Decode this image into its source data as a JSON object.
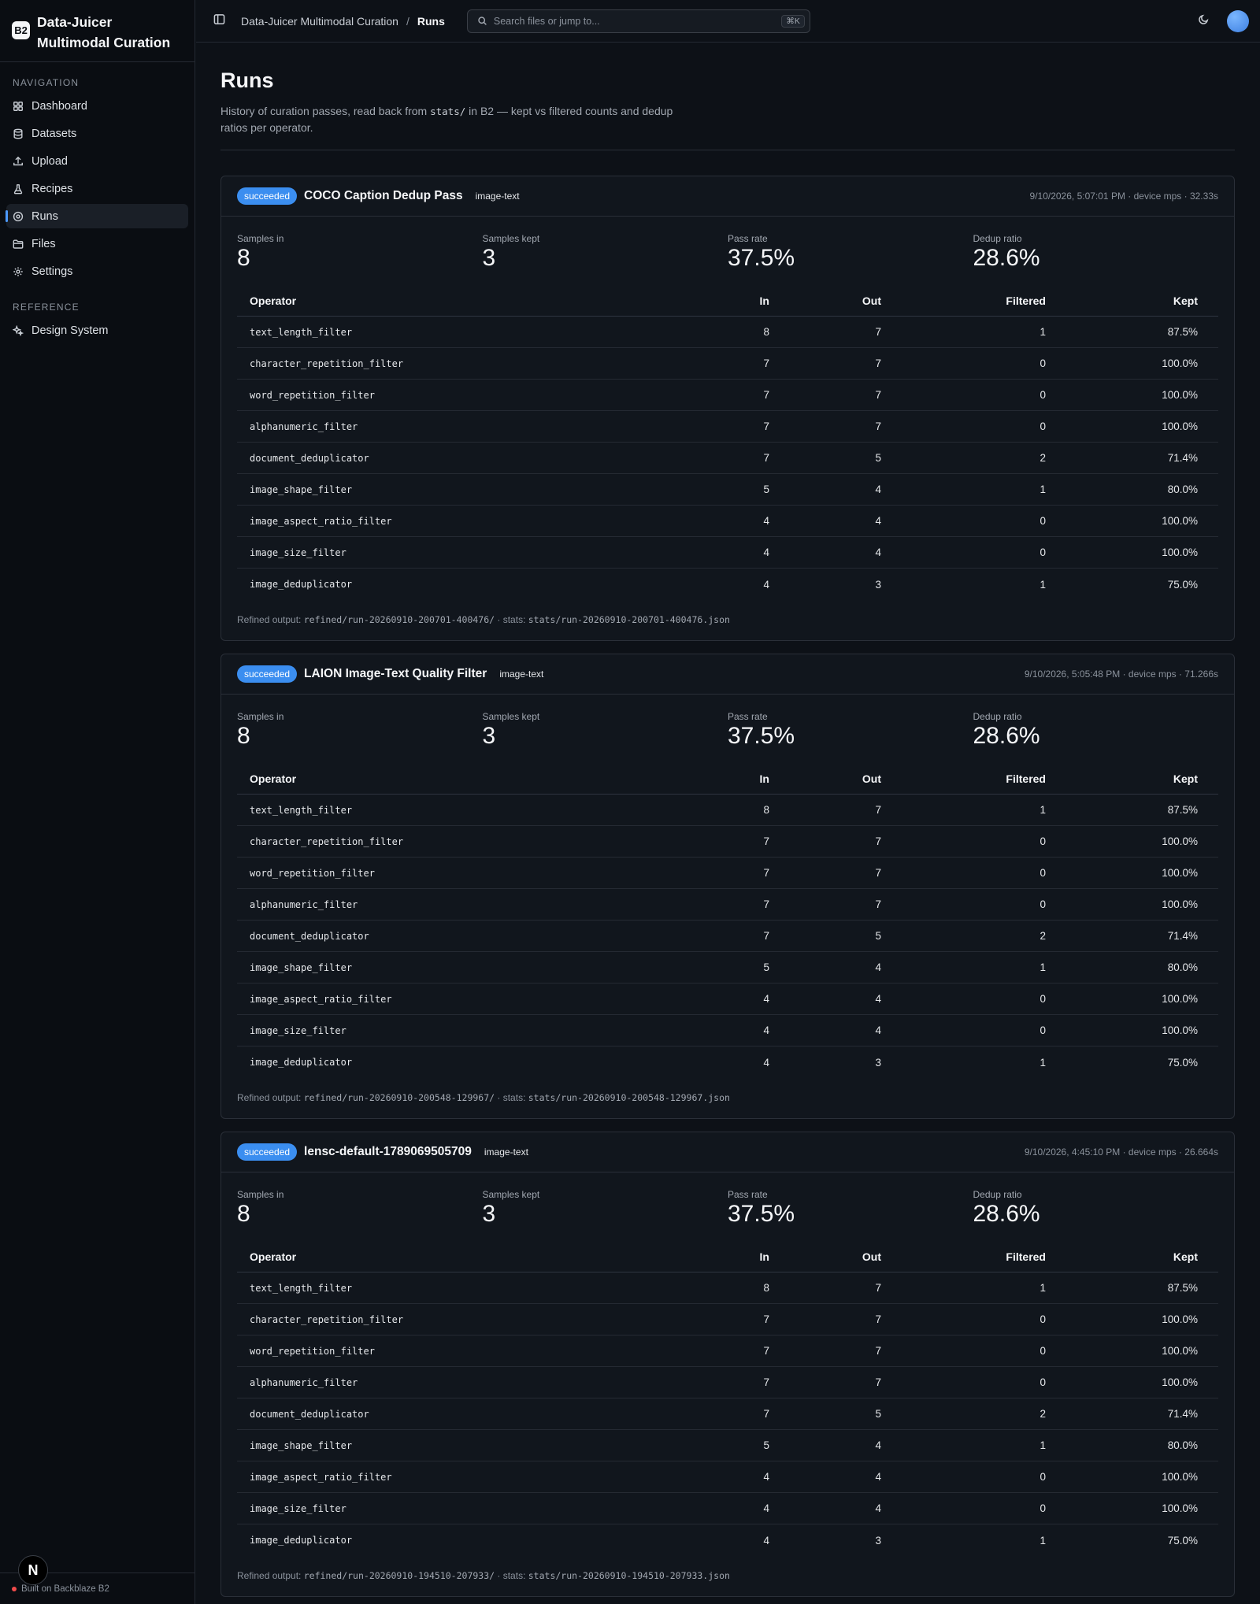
{
  "app": {
    "logo_text": "B2",
    "title": "Data-Juicer Multimodal Curation"
  },
  "sidebar": {
    "navigation_heading": "NAVIGATION",
    "nav_items": [
      {
        "label": "Dashboard",
        "icon": "grid-icon"
      },
      {
        "label": "Datasets",
        "icon": "database-icon"
      },
      {
        "label": "Upload",
        "icon": "upload-icon"
      },
      {
        "label": "Recipes",
        "icon": "flask-icon"
      },
      {
        "label": "Runs",
        "icon": "play-circle-icon",
        "active": true
      },
      {
        "label": "Files",
        "icon": "folder-icon"
      },
      {
        "label": "Settings",
        "icon": "gear-icon"
      }
    ],
    "reference_heading": "REFERENCE",
    "reference_items": [
      {
        "label": "Design System",
        "icon": "sparkles-icon"
      }
    ],
    "footer_text": "Built on Backblaze B2",
    "badge_text": "N"
  },
  "topbar": {
    "breadcrumb_root": "Data-Juicer Multimodal Curation",
    "breadcrumb_sep": "/",
    "breadcrumb_current": "Runs",
    "search_placeholder": "Search files or jump to...",
    "search_shortcut": "⌘K"
  },
  "page": {
    "title": "Runs",
    "desc_before": "History of curation passes, read back from ",
    "desc_code": "stats/",
    "desc_after": " in B2 — kept vs filtered counts and dedup ratios per operator."
  },
  "labels": {
    "samples_in": "Samples in",
    "samples_kept": "Samples kept",
    "pass_rate": "Pass rate",
    "dedup_ratio": "Dedup ratio",
    "col_operator": "Operator",
    "col_in": "In",
    "col_out": "Out",
    "col_filtered": "Filtered",
    "col_kept": "Kept",
    "refined_output": "Refined output: ",
    "stats_prefix": " · stats: "
  },
  "runs": [
    {
      "status": "succeeded",
      "name": "COCO Caption Dedup Pass",
      "mode": "image-text",
      "meta": "9/10/2026, 5:07:01 PM · device mps · 32.33s",
      "samples_in": "8",
      "samples_kept": "3",
      "pass_rate": "37.5%",
      "dedup_ratio": "28.6%",
      "operators": [
        [
          "text_length_filter",
          "8",
          "7",
          "1",
          "87.5%"
        ],
        [
          "character_repetition_filter",
          "7",
          "7",
          "0",
          "100.0%"
        ],
        [
          "word_repetition_filter",
          "7",
          "7",
          "0",
          "100.0%"
        ],
        [
          "alphanumeric_filter",
          "7",
          "7",
          "0",
          "100.0%"
        ],
        [
          "document_deduplicator",
          "7",
          "5",
          "2",
          "71.4%"
        ],
        [
          "image_shape_filter",
          "5",
          "4",
          "1",
          "80.0%"
        ],
        [
          "image_aspect_ratio_filter",
          "4",
          "4",
          "0",
          "100.0%"
        ],
        [
          "image_size_filter",
          "4",
          "4",
          "0",
          "100.0%"
        ],
        [
          "image_deduplicator",
          "4",
          "3",
          "1",
          "75.0%"
        ]
      ],
      "output_path": "refined/run-20260910-200701-400476/",
      "stats_path": "stats/run-20260910-200701-400476.json"
    },
    {
      "status": "succeeded",
      "name": "LAION Image-Text Quality Filter",
      "mode": "image-text",
      "meta": "9/10/2026, 5:05:48 PM · device mps · 71.266s",
      "samples_in": "8",
      "samples_kept": "3",
      "pass_rate": "37.5%",
      "dedup_ratio": "28.6%",
      "operators": [
        [
          "text_length_filter",
          "8",
          "7",
          "1",
          "87.5%"
        ],
        [
          "character_repetition_filter",
          "7",
          "7",
          "0",
          "100.0%"
        ],
        [
          "word_repetition_filter",
          "7",
          "7",
          "0",
          "100.0%"
        ],
        [
          "alphanumeric_filter",
          "7",
          "7",
          "0",
          "100.0%"
        ],
        [
          "document_deduplicator",
          "7",
          "5",
          "2",
          "71.4%"
        ],
        [
          "image_shape_filter",
          "5",
          "4",
          "1",
          "80.0%"
        ],
        [
          "image_aspect_ratio_filter",
          "4",
          "4",
          "0",
          "100.0%"
        ],
        [
          "image_size_filter",
          "4",
          "4",
          "0",
          "100.0%"
        ],
        [
          "image_deduplicator",
          "4",
          "3",
          "1",
          "75.0%"
        ]
      ],
      "output_path": "refined/run-20260910-200548-129967/",
      "stats_path": "stats/run-20260910-200548-129967.json"
    },
    {
      "status": "succeeded",
      "name": "lensc-default-1789069505709",
      "mode": "image-text",
      "meta": "9/10/2026, 4:45:10 PM · device mps · 26.664s",
      "samples_in": "8",
      "samples_kept": "3",
      "pass_rate": "37.5%",
      "dedup_ratio": "28.6%",
      "operators": [
        [
          "text_length_filter",
          "8",
          "7",
          "1",
          "87.5%"
        ],
        [
          "character_repetition_filter",
          "7",
          "7",
          "0",
          "100.0%"
        ],
        [
          "word_repetition_filter",
          "7",
          "7",
          "0",
          "100.0%"
        ],
        [
          "alphanumeric_filter",
          "7",
          "7",
          "0",
          "100.0%"
        ],
        [
          "document_deduplicator",
          "7",
          "5",
          "2",
          "71.4%"
        ],
        [
          "image_shape_filter",
          "5",
          "4",
          "1",
          "80.0%"
        ],
        [
          "image_aspect_ratio_filter",
          "4",
          "4",
          "0",
          "100.0%"
        ],
        [
          "image_size_filter",
          "4",
          "4",
          "0",
          "100.0%"
        ],
        [
          "image_deduplicator",
          "4",
          "3",
          "1",
          "75.0%"
        ]
      ],
      "output_path": "refined/run-20260910-194510-207933/",
      "stats_path": "stats/run-20260910-194510-207933.json"
    }
  ]
}
